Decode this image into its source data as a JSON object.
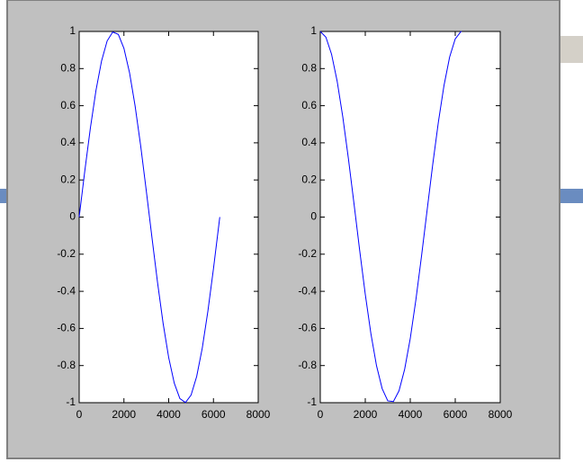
{
  "chart_data": [
    {
      "type": "line",
      "x": [
        0,
        250,
        500,
        750,
        1000,
        1250,
        1500,
        1750,
        2000,
        2250,
        2500,
        2750,
        3000,
        3250,
        3500,
        3750,
        4000,
        4250,
        4500,
        4750,
        5000,
        5250,
        5500,
        5750,
        6000,
        6250,
        6283
      ],
      "values": [
        0,
        0.247,
        0.479,
        0.682,
        0.841,
        0.949,
        0.997,
        0.984,
        0.909,
        0.778,
        0.598,
        0.382,
        0.141,
        -0.108,
        -0.351,
        -0.572,
        -0.757,
        -0.895,
        -0.978,
        -0.999,
        -0.959,
        -0.859,
        -0.706,
        -0.508,
        -0.279,
        -0.033,
        0
      ],
      "color": "#0000ff",
      "xlim": [
        0,
        8000
      ],
      "xticks": [
        0,
        2000,
        4000,
        6000,
        8000
      ],
      "ylim": [
        -1,
        1
      ],
      "yticks": [
        -1,
        -0.8,
        -0.6,
        -0.4,
        -0.2,
        0,
        0.2,
        0.4,
        0.6,
        0.8,
        1
      ]
    },
    {
      "type": "line",
      "x": [
        0,
        250,
        500,
        750,
        1000,
        1250,
        1500,
        1750,
        2000,
        2250,
        2500,
        2750,
        3000,
        3250,
        3500,
        3750,
        4000,
        4250,
        4500,
        4750,
        5000,
        5250,
        5500,
        5750,
        6000,
        6250,
        6283
      ],
      "values": [
        1,
        0.969,
        0.878,
        0.732,
        0.54,
        0.315,
        0.071,
        -0.178,
        -0.416,
        -0.628,
        -0.801,
        -0.924,
        -0.99,
        -0.994,
        -0.936,
        -0.82,
        -0.654,
        -0.446,
        -0.211,
        0.038,
        0.284,
        0.512,
        0.709,
        0.862,
        0.96,
        0.999,
        1
      ],
      "color": "#0000ff",
      "xlim": [
        0,
        8000
      ],
      "xticks": [
        0,
        2000,
        4000,
        6000,
        8000
      ],
      "ylim": [
        -1,
        1
      ],
      "yticks": [
        -1,
        -0.8,
        -0.6,
        -0.4,
        -0.2,
        0,
        0.2,
        0.4,
        0.6,
        0.8,
        1
      ]
    }
  ]
}
